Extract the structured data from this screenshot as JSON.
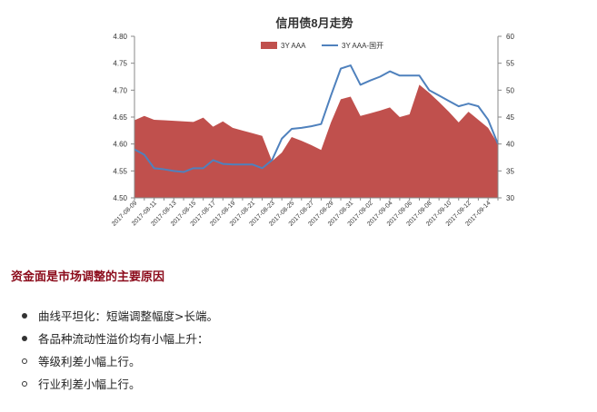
{
  "chart_data": {
    "type": "area",
    "title": "信用债8月走势",
    "categories": [
      "2017-08-09",
      "2017-08-10",
      "2017-08-11",
      "2017-08-12",
      "2017-08-13",
      "2017-08-14",
      "2017-08-15",
      "2017-08-16",
      "2017-08-17",
      "2017-08-18",
      "2017-08-19",
      "2017-08-20",
      "2017-08-21",
      "2017-08-22",
      "2017-08-23",
      "2017-08-24",
      "2017-08-25",
      "2017-08-26",
      "2017-08-27",
      "2017-08-28",
      "2017-08-29",
      "2017-08-30",
      "2017-08-31",
      "2017-09-01",
      "2017-09-02",
      "2017-09-03",
      "2017-09-04",
      "2017-09-05",
      "2017-09-06",
      "2017-09-07",
      "2017-09-08",
      "2017-09-09",
      "2017-09-10",
      "2017-09-11",
      "2017-09-12",
      "2017-09-13",
      "2017-09-14",
      "2017-09-15"
    ],
    "tick_labels": [
      "2017-08-09",
      "2017-08-11",
      "2017-08-13",
      "2017-08-15",
      "2017-08-17",
      "2017-08-19",
      "2017-08-21",
      "2017-08-23",
      "2017-08-25",
      "2017-08-27",
      "2017-08-29",
      "2017-08-31",
      "2017-09-02",
      "2017-09-04",
      "2017-09-06",
      "2017-09-08",
      "2017-09-10",
      "2017-09-12",
      "2017-09-14"
    ],
    "series": [
      {
        "name": "3Y AAA",
        "type": "area",
        "axis": "left",
        "color": "#c0504d",
        "values": [
          4.644,
          4.652,
          4.645,
          4.644,
          4.643,
          4.642,
          4.641,
          4.649,
          4.632,
          4.642,
          4.63,
          4.625,
          4.62,
          4.615,
          4.568,
          4.584,
          4.613,
          4.606,
          4.598,
          4.589,
          4.64,
          4.683,
          4.688,
          4.652,
          4.657,
          4.662,
          4.668,
          4.65,
          4.655,
          4.71,
          4.695,
          4.678,
          4.66,
          4.64,
          4.66,
          4.645,
          4.63,
          4.6
        ]
      },
      {
        "name": "3Y AAA-国开",
        "type": "line",
        "axis": "right",
        "color": "#4f81bd",
        "values": [
          39.0,
          38.0,
          35.5,
          35.3,
          35.0,
          34.8,
          35.5,
          35.5,
          37.0,
          36.3,
          36.2,
          36.2,
          36.2,
          35.5,
          37.0,
          41.0,
          42.8,
          43.0,
          43.3,
          43.7,
          49.0,
          54.0,
          54.6,
          51.0,
          51.8,
          52.5,
          53.5,
          52.7,
          52.7,
          52.7,
          50.0,
          49.0,
          48.0,
          47.0,
          47.5,
          47.0,
          44.5,
          40.0
        ]
      }
    ],
    "ylim": [
      4.5,
      4.8
    ],
    "y_ticks": [
      "4.50",
      "4.55",
      "4.60",
      "4.65",
      "4.70",
      "4.75",
      "4.80"
    ],
    "y2lim": [
      30,
      60
    ],
    "y2_ticks": [
      "30",
      "35",
      "40",
      "45",
      "50",
      "55",
      "60"
    ],
    "grid": false,
    "legend_position": "top-center"
  },
  "section_heading": "资金面是市场调整的主要原因",
  "bullets": [
    {
      "text": "曲线平坦化：短端调整幅度>长端。",
      "marker": "disc"
    },
    {
      "text": "各品种流动性溢价均有小幅上升：",
      "marker": "disc"
    },
    {
      "text": "等级利差小幅上行。",
      "marker": "circle"
    },
    {
      "text": "行业利差小幅上行。",
      "marker": "circle"
    }
  ]
}
